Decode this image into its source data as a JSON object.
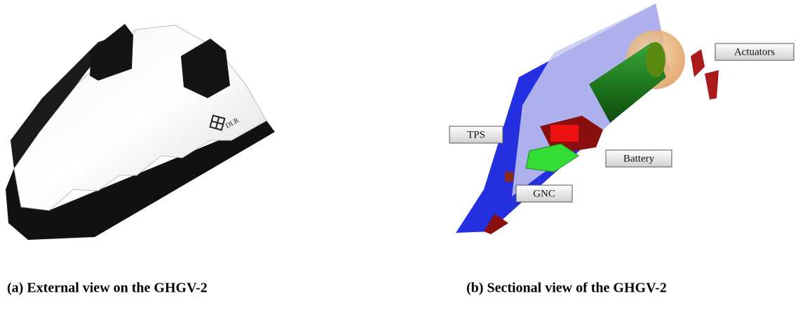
{
  "figures": [
    {
      "caption": "(a) External view on the GHGV-2",
      "logo": "DLR"
    },
    {
      "caption": "(b) Sectional view of the GHGV-2",
      "labels": [
        "Actuators",
        "TPS",
        "Battery",
        "GNC"
      ]
    }
  ]
}
